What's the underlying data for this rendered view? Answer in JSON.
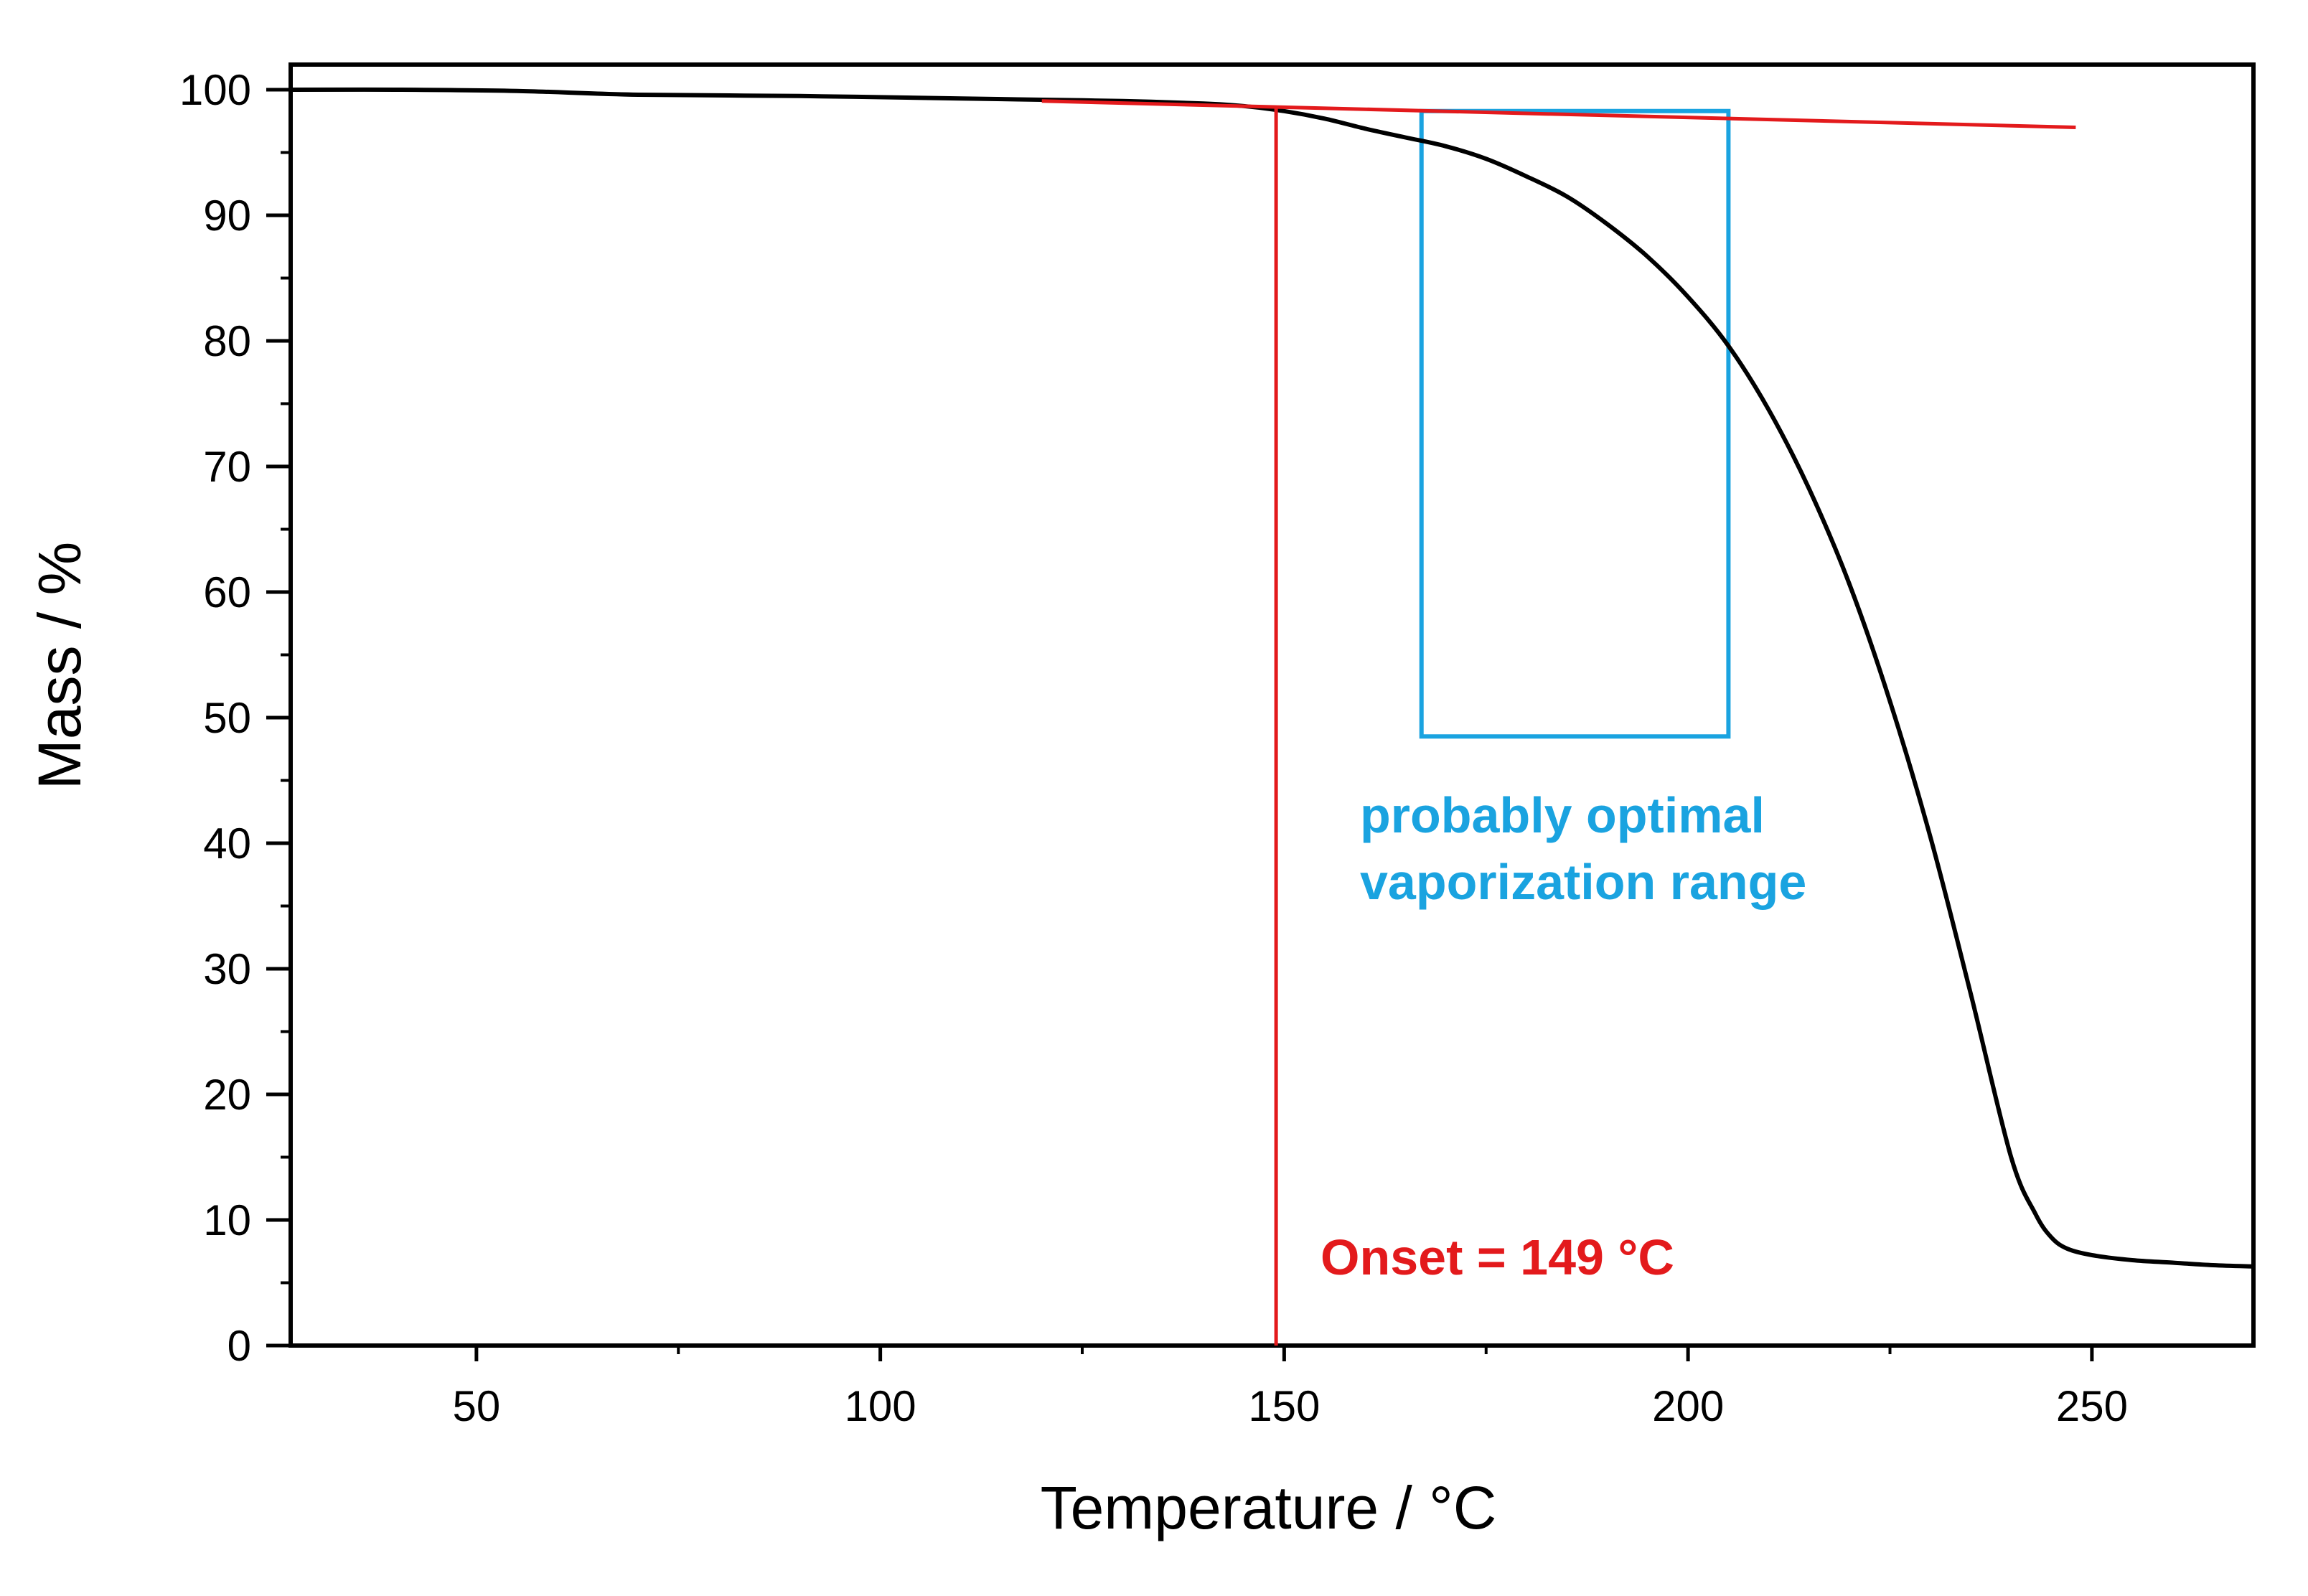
{
  "chart_data": {
    "type": "line",
    "title": "",
    "xlabel": "Temperature / °C",
    "ylabel": "Mass / %",
    "xlim": [
      27,
      270
    ],
    "ylim": [
      0,
      102
    ],
    "x_ticks": [
      50,
      100,
      150,
      200,
      250
    ],
    "x_tick_labels": [
      "50",
      "100",
      "150",
      "200",
      "250"
    ],
    "x_minor_ticks": [
      75,
      125,
      175,
      225
    ],
    "y_ticks": [
      0,
      10,
      20,
      30,
      40,
      50,
      60,
      70,
      80,
      90,
      100
    ],
    "y_tick_labels": [
      "0",
      "10",
      "20",
      "30",
      "40",
      "50",
      "60",
      "70",
      "80",
      "90",
      "100"
    ],
    "y_minor_ticks": [
      5,
      15,
      25,
      35,
      45,
      55,
      65,
      75,
      85,
      95
    ],
    "grid": false,
    "series": [
      {
        "name": "Mass",
        "color": "#000000",
        "x": [
          27,
          40,
          55,
          70,
          90,
          110,
          120,
          130,
          140,
          145,
          150,
          155,
          160,
          165,
          170,
          175,
          180,
          185,
          190,
          195,
          200,
          205,
          210,
          215,
          220,
          225,
          230,
          235,
          240,
          243,
          245,
          247,
          250,
          255,
          260,
          265,
          270
        ],
        "y": [
          100,
          100,
          99.9,
          99.6,
          99.5,
          99.3,
          99.2,
          99.1,
          98.9,
          98.7,
          98.3,
          97.7,
          96.9,
          96.2,
          95.5,
          94.5,
          93.1,
          91.5,
          89.3,
          86.7,
          83.5,
          79.6,
          74.5,
          68.2,
          60.6,
          51.3,
          40.5,
          28.0,
          15.0,
          10.5,
          8.6,
          7.7,
          7.2,
          6.8,
          6.6,
          6.4,
          6.3
        ]
      },
      {
        "name": "Tangent",
        "color": "#e31a1c",
        "x": [
          120,
          248
        ],
        "y": [
          99.1,
          97.0
        ]
      }
    ],
    "onset_line": {
      "x": 149,
      "y_top": 98.7,
      "color": "#e31a1c"
    },
    "highlight_box": {
      "x0": 167,
      "x1": 205,
      "y0": 48.5,
      "y1": 98.3,
      "color": "#1aa3e0"
    },
    "annotations": [
      {
        "text": "probably optimal",
        "color": "#1aa3e0"
      },
      {
        "text": "vaporization range",
        "color": "#1aa3e0"
      },
      {
        "text": "Onset = 149 °C",
        "color": "#e31a1c"
      }
    ]
  }
}
